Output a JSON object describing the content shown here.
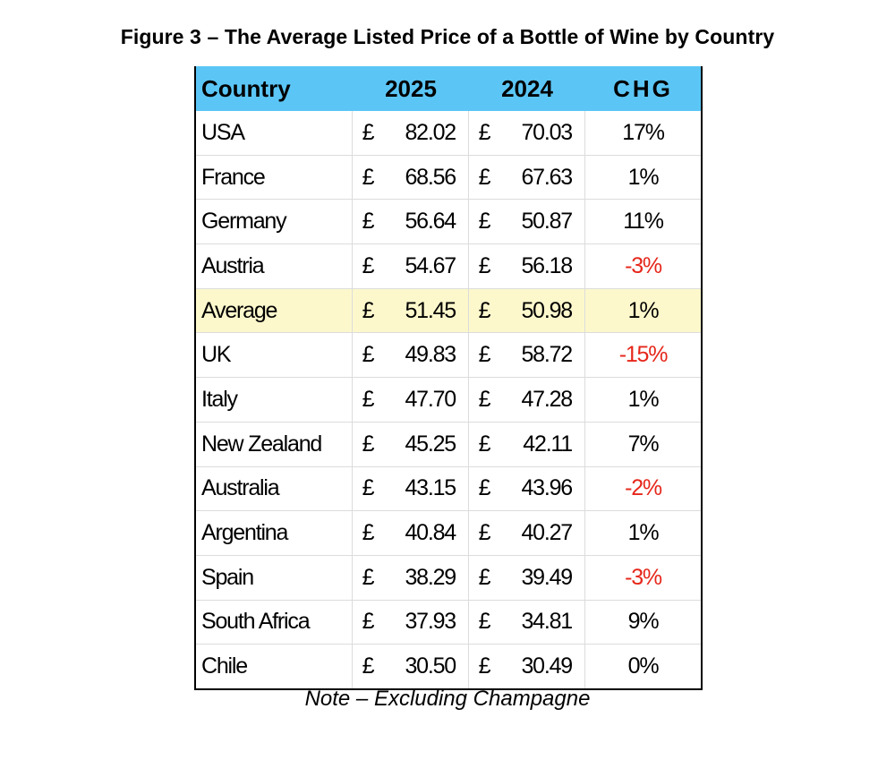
{
  "title": "Figure 3 – The Average Listed Price of a Bottle of Wine by Country",
  "colors": {
    "header_bg": "#5bc6f5",
    "highlight_bg": "#fdf8cc",
    "negative": "#e6261a"
  },
  "table": {
    "headers": {
      "country": "Country",
      "y2025": "2025",
      "y2024": "2024",
      "chg": "CHG"
    },
    "currency": "£",
    "rows": [
      {
        "country": "USA",
        "y2025": "82.02",
        "y2024": "70.03",
        "chg": "17%",
        "negative": false,
        "highlight": false
      },
      {
        "country": "France",
        "y2025": "68.56",
        "y2024": "67.63",
        "chg": "1%",
        "negative": false,
        "highlight": false
      },
      {
        "country": "Germany",
        "y2025": "56.64",
        "y2024": "50.87",
        "chg": "11%",
        "negative": false,
        "highlight": false
      },
      {
        "country": "Austria",
        "y2025": "54.67",
        "y2024": "56.18",
        "chg": "-3%",
        "negative": true,
        "highlight": false
      },
      {
        "country": "Average",
        "y2025": "51.45",
        "y2024": "50.98",
        "chg": "1%",
        "negative": false,
        "highlight": true
      },
      {
        "country": "UK",
        "y2025": "49.83",
        "y2024": "58.72",
        "chg": "-15%",
        "negative": true,
        "highlight": false
      },
      {
        "country": "Italy",
        "y2025": "47.70",
        "y2024": "47.28",
        "chg": "1%",
        "negative": false,
        "highlight": false
      },
      {
        "country": "New Zealand",
        "y2025": "45.25",
        "y2024": "42.11",
        "chg": "7%",
        "negative": false,
        "highlight": false
      },
      {
        "country": "Australia",
        "y2025": "43.15",
        "y2024": "43.96",
        "chg": "-2%",
        "negative": true,
        "highlight": false
      },
      {
        "country": "Argentina",
        "y2025": "40.84",
        "y2024": "40.27",
        "chg": "1%",
        "negative": false,
        "highlight": false
      },
      {
        "country": "Spain",
        "y2025": "38.29",
        "y2024": "39.49",
        "chg": "-3%",
        "negative": true,
        "highlight": false
      },
      {
        "country": "South Africa",
        "y2025": "37.93",
        "y2024": "34.81",
        "chg": "9%",
        "negative": false,
        "highlight": false
      },
      {
        "country": "Chile",
        "y2025": "30.50",
        "y2024": "30.49",
        "chg": "0%",
        "negative": false,
        "highlight": false
      }
    ]
  },
  "note": "Note – Excluding Champagne"
}
